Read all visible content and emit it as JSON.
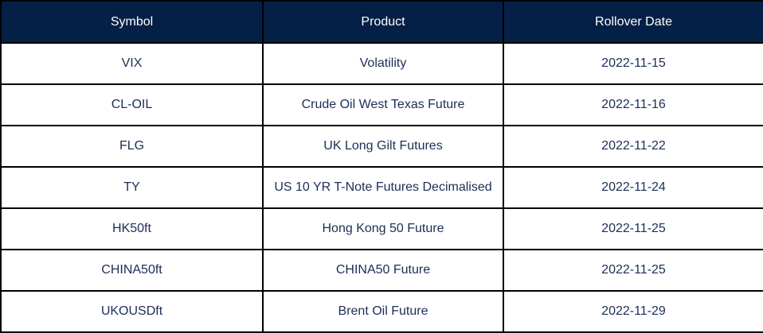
{
  "headers": [
    "Symbol",
    "Product",
    "Rollover Date"
  ],
  "rows": [
    [
      "VIX",
      "Volatility",
      "2022-11-15"
    ],
    [
      "CL-OIL",
      "Crude Oil West Texas Future",
      "2022-11-16"
    ],
    [
      "FLG",
      "UK Long Gilt Futures",
      "2022-11-22"
    ],
    [
      "TY",
      "US 10 YR T-Note Futures Decimalised",
      "2022-11-24"
    ],
    [
      "HK50ft",
      "Hong Kong 50 Future",
      "2022-11-25"
    ],
    [
      "CHINA50ft",
      "CHINA50 Future",
      "2022-11-25"
    ],
    [
      "UKOUSDft",
      "Brent Oil Future",
      "2022-11-29"
    ]
  ],
  "colors": {
    "header_bg": "#042046",
    "header_text": "#ffffff",
    "cell_text": "#1a2f55"
  }
}
